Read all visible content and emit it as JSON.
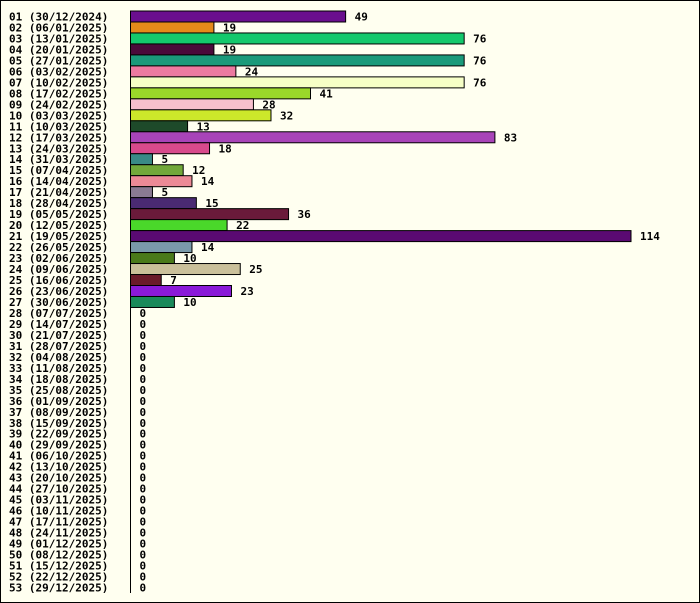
{
  "chart_data": {
    "type": "bar",
    "orientation": "horizontal",
    "title": "",
    "xlabel": "",
    "ylabel": "",
    "grid": false,
    "legend": "none",
    "xlim": [
      0,
      114
    ],
    "categories": [
      "01 (30/12/2024)",
      "02 (06/01/2025)",
      "03 (13/01/2025)",
      "04 (20/01/2025)",
      "05 (27/01/2025)",
      "06 (03/02/2025)",
      "07 (10/02/2025)",
      "08 (17/02/2025)",
      "09 (24/02/2025)",
      "10 (03/03/2025)",
      "11 (10/03/2025)",
      "12 (17/03/2025)",
      "13 (24/03/2025)",
      "14 (31/03/2025)",
      "15 (07/04/2025)",
      "16 (14/04/2025)",
      "17 (21/04/2025)",
      "18 (28/04/2025)",
      "19 (05/05/2025)",
      "20 (12/05/2025)",
      "21 (19/05/2025)",
      "22 (26/05/2025)",
      "23 (02/06/2025)",
      "24 (09/06/2025)",
      "25 (16/06/2025)",
      "26 (23/06/2025)",
      "27 (30/06/2025)",
      "28 (07/07/2025)",
      "29 (14/07/2025)",
      "30 (21/07/2025)",
      "31 (28/07/2025)",
      "32 (04/08/2025)",
      "33 (11/08/2025)",
      "34 (18/08/2025)",
      "35 (25/08/2025)",
      "36 (01/09/2025)",
      "37 (08/09/2025)",
      "38 (15/09/2025)",
      "39 (22/09/2025)",
      "40 (29/09/2025)",
      "41 (06/10/2025)",
      "42 (13/10/2025)",
      "43 (20/10/2025)",
      "44 (27/10/2025)",
      "45 (03/11/2025)",
      "46 (10/11/2025)",
      "47 (17/11/2025)",
      "48 (24/11/2025)",
      "49 (01/12/2025)",
      "50 (08/12/2025)",
      "51 (15/12/2025)",
      "52 (22/12/2025)",
      "53 (29/12/2025)"
    ],
    "values": [
      49,
      19,
      76,
      19,
      76,
      24,
      76,
      41,
      28,
      32,
      13,
      83,
      18,
      5,
      12,
      14,
      5,
      15,
      36,
      22,
      114,
      14,
      10,
      25,
      7,
      23,
      10,
      0,
      0,
      0,
      0,
      0,
      0,
      0,
      0,
      0,
      0,
      0,
      0,
      0,
      0,
      0,
      0,
      0,
      0,
      0,
      0,
      0,
      0,
      0,
      0,
      0,
      0
    ],
    "colors": [
      "#6a0f8e",
      "#e48a1a",
      "#14c86c",
      "#4a0a3a",
      "#1a9a7a",
      "#ec7aa0",
      "#f6ffc6",
      "#9ad82a",
      "#f6c0cc",
      "#cce82a",
      "#1e4a2a",
      "#a844b8",
      "#d84a8c",
      "#3a8a86",
      "#72a83a",
      "#ec8a96",
      "#8a7a92",
      "#4a2a72",
      "#6a1a3a",
      "#4ad82a",
      "#5a0a72",
      "#7a9aaa",
      "#4a7a1a",
      "#cac09a",
      "#6a1a2a",
      "#8a1ad8",
      "#1a8a5a",
      "#000000",
      "#000000",
      "#000000",
      "#000000",
      "#000000",
      "#000000",
      "#000000",
      "#000000",
      "#000000",
      "#000000",
      "#000000",
      "#000000",
      "#000000",
      "#000000",
      "#000000",
      "#000000",
      "#000000",
      "#000000",
      "#000000",
      "#000000",
      "#000000",
      "#000000",
      "#000000",
      "#000000",
      "#000000",
      "#000000"
    ]
  }
}
